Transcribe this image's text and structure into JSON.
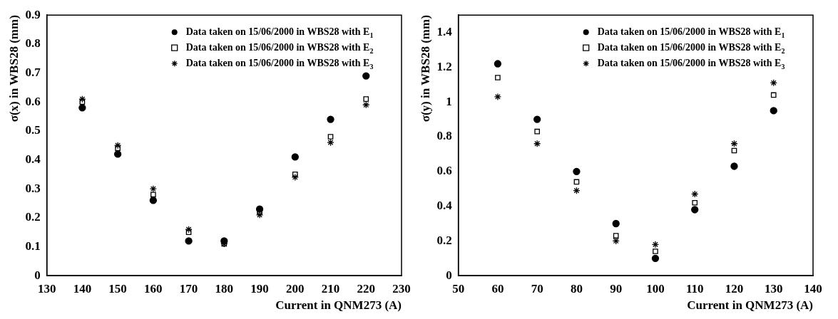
{
  "chart_data": [
    {
      "type": "scatter",
      "xlabel": "Current in QNM273 (A)",
      "ylabel": "σ(x) in WBS28 (mm)",
      "x": [
        140,
        150,
        160,
        170,
        180,
        190,
        200,
        210,
        220
      ],
      "xlim": [
        130,
        230
      ],
      "xticks": [
        130,
        140,
        150,
        160,
        170,
        180,
        190,
        200,
        210,
        220,
        230
      ],
      "ylim": [
        0,
        0.9
      ],
      "yticks": [
        0,
        0.1,
        0.2,
        0.3,
        0.4,
        0.5,
        0.6,
        0.7,
        0.8,
        0.9
      ],
      "grid": false,
      "legend": "top right",
      "series": [
        {
          "name": "Data taken on 15/06/2000 in WBS28 with E$_{1}$",
          "color": "#000000",
          "marker": "circle",
          "values": [
            0.58,
            0.42,
            0.26,
            0.12,
            0.12,
            0.23,
            0.41,
            0.54,
            0.69
          ]
        },
        {
          "name": "Data taken on 15/06/2000 in WBS28 with E$_{2}$",
          "color": "#000000",
          "marker": "square",
          "values": [
            0.6,
            0.44,
            0.28,
            0.15,
            0.11,
            0.22,
            0.35,
            0.48,
            0.61
          ]
        },
        {
          "name": "Data taken on 15/06/2000 in WBS28 with E$_{3}$",
          "color": "#000000",
          "marker": "cross",
          "values": [
            0.61,
            0.45,
            0.3,
            0.16,
            0.11,
            0.21,
            0.34,
            0.46,
            0.59
          ]
        }
      ]
    },
    {
      "type": "scatter",
      "xlabel": "Current in QNM273 (A)",
      "ylabel": "σ(y) in WBS28 (mm)",
      "x": [
        60,
        70,
        80,
        90,
        100,
        110,
        120,
        130
      ],
      "xlim": [
        50,
        140
      ],
      "xticks": [
        50,
        60,
        70,
        80,
        90,
        100,
        110,
        120,
        130,
        140
      ],
      "ylim": [
        0,
        1.5
      ],
      "yticks": [
        0,
        0.2,
        0.4,
        0.6,
        0.8,
        1,
        1.2,
        1.4
      ],
      "grid": false,
      "legend": "top right",
      "series": [
        {
          "name": "Data taken on 15/06/2000 in WBS28 with E$_{1}$",
          "color": "#000000",
          "marker": "circle",
          "values": [
            1.22,
            0.9,
            0.6,
            0.3,
            0.1,
            0.38,
            0.63,
            0.95
          ]
        },
        {
          "name": "Data taken on 15/06/2000 in WBS28 with E$_{2}$",
          "color": "#000000",
          "marker": "square",
          "values": [
            1.14,
            0.83,
            0.54,
            0.23,
            0.14,
            0.42,
            0.72,
            1.04
          ]
        },
        {
          "name": "Data taken on 15/06/2000 in WBS28 with E$_{3}$",
          "color": "#000000",
          "marker": "cross",
          "values": [
            1.03,
            0.76,
            0.49,
            0.2,
            0.18,
            0.47,
            0.76,
            1.11
          ]
        }
      ]
    }
  ]
}
